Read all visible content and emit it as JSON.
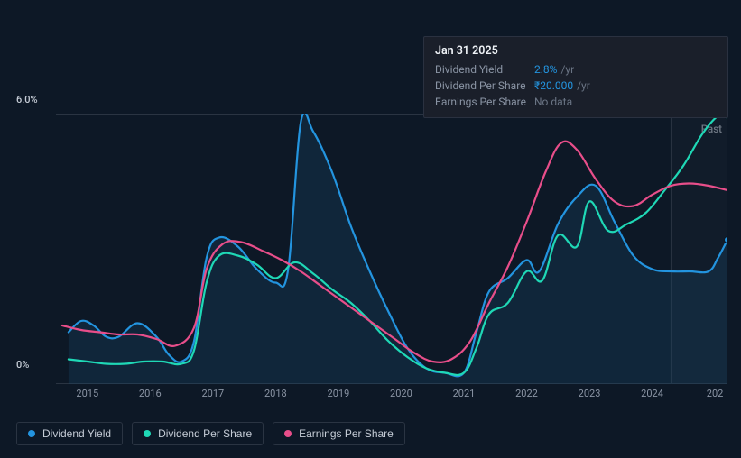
{
  "tooltip": {
    "date": "Jan 31 2025",
    "rows": [
      {
        "label": "Dividend Yield",
        "value": "2.8%",
        "unit": "/yr",
        "valueColor": "#2394df"
      },
      {
        "label": "Dividend Per Share",
        "value": "₹20.000",
        "unit": "/yr",
        "valueColor": "#2394df"
      },
      {
        "label": "Earnings Per Share",
        "value": "No data",
        "unit": "",
        "valueColor": "#6a7484"
      }
    ]
  },
  "chart": {
    "type": "line",
    "background": "#0d1826",
    "past_label": "Past",
    "y_axis": {
      "min": 0,
      "max": 6,
      "ticks": [
        {
          "v": 0,
          "label": "0%"
        },
        {
          "v": 6,
          "label": "6.0%"
        }
      ],
      "label_color": "#c5ccd6"
    },
    "x_axis": {
      "min": 2014.5,
      "max": 2025.2,
      "ticks": [
        {
          "v": 2015,
          "label": "2015"
        },
        {
          "v": 2016,
          "label": "2016"
        },
        {
          "v": 2017,
          "label": "2017"
        },
        {
          "v": 2018,
          "label": "2018"
        },
        {
          "v": 2019,
          "label": "2019"
        },
        {
          "v": 2020,
          "label": "2020"
        },
        {
          "v": 2021,
          "label": "2021"
        },
        {
          "v": 2022,
          "label": "2022"
        },
        {
          "v": 2023,
          "label": "2023"
        },
        {
          "v": 2024,
          "label": "2024"
        },
        {
          "v": 2025,
          "label": "202"
        }
      ],
      "label_color": "#8a94a4"
    },
    "now_line_x": 2024.3,
    "grid_top_color": "#2a3442",
    "fill_opacity": 0.28,
    "line_width": 2.2,
    "series": [
      {
        "name": "Dividend Yield",
        "color": "#2394df",
        "fill": true,
        "fill_color": "#1a4a70",
        "marker_end": true,
        "data": [
          [
            2014.7,
            1.15
          ],
          [
            2014.9,
            1.4
          ],
          [
            2015.1,
            1.3
          ],
          [
            2015.3,
            1.05
          ],
          [
            2015.5,
            1.05
          ],
          [
            2015.8,
            1.35
          ],
          [
            2016.1,
            1.05
          ],
          [
            2016.3,
            0.65
          ],
          [
            2016.5,
            0.5
          ],
          [
            2016.7,
            0.95
          ],
          [
            2016.9,
            2.8
          ],
          [
            2017.1,
            3.25
          ],
          [
            2017.4,
            3.05
          ],
          [
            2017.7,
            2.55
          ],
          [
            2018.0,
            2.25
          ],
          [
            2018.2,
            2.55
          ],
          [
            2018.4,
            5.8
          ],
          [
            2018.6,
            5.6
          ],
          [
            2018.9,
            4.7
          ],
          [
            2019.2,
            3.5
          ],
          [
            2019.5,
            2.5
          ],
          [
            2019.8,
            1.6
          ],
          [
            2020.1,
            0.8
          ],
          [
            2020.4,
            0.35
          ],
          [
            2020.7,
            0.25
          ],
          [
            2021.0,
            0.25
          ],
          [
            2021.2,
            1.15
          ],
          [
            2021.4,
            2.05
          ],
          [
            2021.7,
            2.35
          ],
          [
            2022.0,
            2.75
          ],
          [
            2022.2,
            2.5
          ],
          [
            2022.5,
            3.55
          ],
          [
            2022.8,
            4.15
          ],
          [
            2023.1,
            4.4
          ],
          [
            2023.4,
            3.6
          ],
          [
            2023.7,
            2.85
          ],
          [
            2024.0,
            2.55
          ],
          [
            2024.3,
            2.5
          ],
          [
            2024.6,
            2.5
          ],
          [
            2024.9,
            2.5
          ],
          [
            2025.05,
            2.8
          ],
          [
            2025.2,
            3.2
          ]
        ]
      },
      {
        "name": "Dividend Per Share",
        "color": "#1fd8b6",
        "fill": false,
        "marker_end": true,
        "data": [
          [
            2014.7,
            0.55
          ],
          [
            2015.0,
            0.5
          ],
          [
            2015.3,
            0.45
          ],
          [
            2015.6,
            0.45
          ],
          [
            2015.9,
            0.5
          ],
          [
            2016.2,
            0.5
          ],
          [
            2016.5,
            0.45
          ],
          [
            2016.7,
            0.75
          ],
          [
            2016.9,
            2.25
          ],
          [
            2017.1,
            2.85
          ],
          [
            2017.4,
            2.85
          ],
          [
            2017.7,
            2.65
          ],
          [
            2018.0,
            2.35
          ],
          [
            2018.3,
            2.7
          ],
          [
            2018.6,
            2.45
          ],
          [
            2018.9,
            2.1
          ],
          [
            2019.2,
            1.8
          ],
          [
            2019.5,
            1.4
          ],
          [
            2019.8,
            0.95
          ],
          [
            2020.1,
            0.6
          ],
          [
            2020.4,
            0.35
          ],
          [
            2020.7,
            0.25
          ],
          [
            2021.0,
            0.25
          ],
          [
            2021.2,
            0.8
          ],
          [
            2021.4,
            1.55
          ],
          [
            2021.7,
            1.8
          ],
          [
            2022.0,
            2.5
          ],
          [
            2022.25,
            2.3
          ],
          [
            2022.5,
            3.3
          ],
          [
            2022.8,
            3.05
          ],
          [
            2023.0,
            4.05
          ],
          [
            2023.3,
            3.4
          ],
          [
            2023.6,
            3.55
          ],
          [
            2023.9,
            3.8
          ],
          [
            2024.2,
            4.3
          ],
          [
            2024.5,
            4.85
          ],
          [
            2024.8,
            5.55
          ],
          [
            2025.05,
            5.95
          ],
          [
            2025.2,
            5.95
          ]
        ]
      },
      {
        "name": "Earnings Per Share",
        "color": "#e84e8a",
        "fill": false,
        "marker_end": false,
        "data": [
          [
            2014.6,
            1.3
          ],
          [
            2014.9,
            1.2
          ],
          [
            2015.2,
            1.15
          ],
          [
            2015.5,
            1.1
          ],
          [
            2015.8,
            1.1
          ],
          [
            2016.1,
            1.0
          ],
          [
            2016.4,
            0.85
          ],
          [
            2016.7,
            1.25
          ],
          [
            2016.9,
            2.55
          ],
          [
            2017.15,
            3.1
          ],
          [
            2017.45,
            3.15
          ],
          [
            2017.8,
            2.95
          ],
          [
            2018.1,
            2.75
          ],
          [
            2018.4,
            2.5
          ],
          [
            2018.7,
            2.2
          ],
          [
            2019.0,
            1.9
          ],
          [
            2019.3,
            1.6
          ],
          [
            2019.6,
            1.3
          ],
          [
            2019.9,
            1.0
          ],
          [
            2020.2,
            0.7
          ],
          [
            2020.5,
            0.5
          ],
          [
            2020.8,
            0.55
          ],
          [
            2021.1,
            0.95
          ],
          [
            2021.4,
            1.8
          ],
          [
            2021.7,
            2.6
          ],
          [
            2022.0,
            3.6
          ],
          [
            2022.3,
            4.7
          ],
          [
            2022.55,
            5.35
          ],
          [
            2022.8,
            5.2
          ],
          [
            2023.1,
            4.55
          ],
          [
            2023.4,
            4.05
          ],
          [
            2023.7,
            3.95
          ],
          [
            2024.0,
            4.2
          ],
          [
            2024.3,
            4.4
          ],
          [
            2024.6,
            4.45
          ],
          [
            2024.9,
            4.4
          ],
          [
            2025.2,
            4.3
          ]
        ]
      }
    ],
    "legend": [
      {
        "label": "Dividend Yield",
        "color": "#2394df"
      },
      {
        "label": "Dividend Per Share",
        "color": "#1fd8b6"
      },
      {
        "label": "Earnings Per Share",
        "color": "#e84e8a"
      }
    ]
  }
}
